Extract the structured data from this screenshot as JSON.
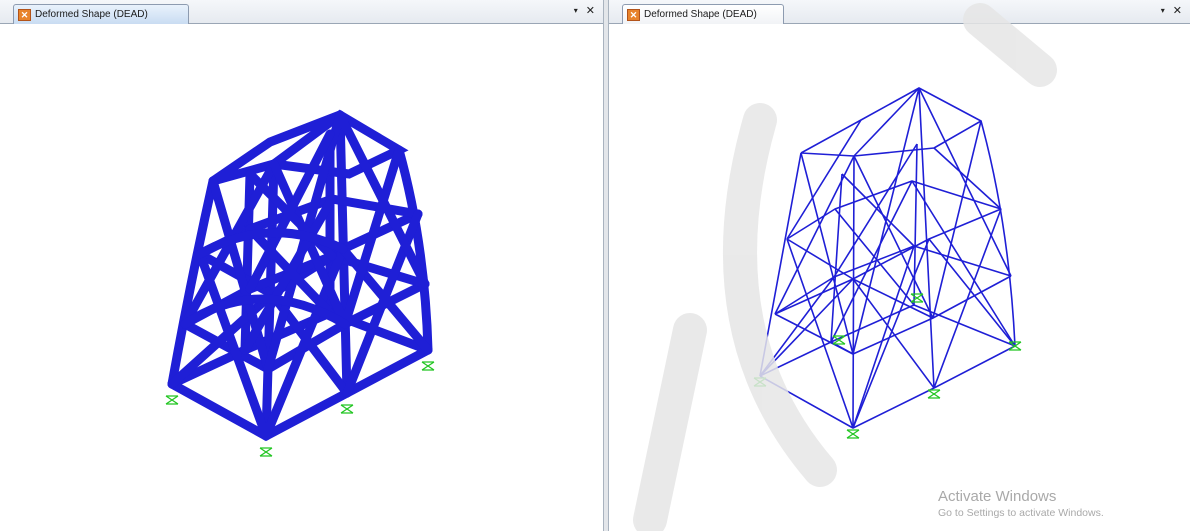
{
  "left_pane": {
    "tab_title": "Deformed Shape (DEAD)",
    "dropdown_glyph": "▾",
    "close_glyph": "✕",
    "icon": "structure-model-icon"
  },
  "right_pane": {
    "tab_title": "Deformed Shape (DEAD)",
    "dropdown_glyph": "▾",
    "close_glyph": "✕",
    "icon": "structure-model-icon"
  },
  "colors": {
    "frame_members": "#1f1fd6",
    "supports": "#22c522",
    "watermark": "#e4e4e4"
  },
  "os_notice": {
    "title": "Activate Windows",
    "subtitle": "Go to Settings to activate Windows."
  }
}
